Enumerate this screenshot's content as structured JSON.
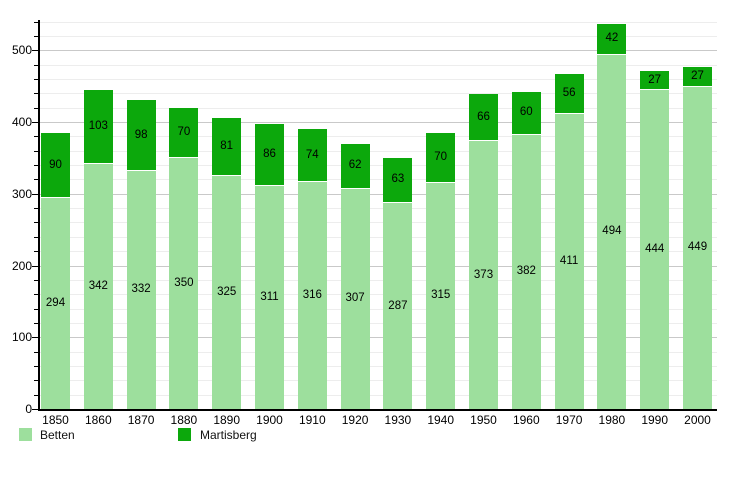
{
  "chart_data": {
    "type": "bar",
    "stacked": true,
    "title": "",
    "xlabel": "",
    "ylabel": "",
    "categories": [
      "1850",
      "1860",
      "1870",
      "1880",
      "1890",
      "1900",
      "1910",
      "1920",
      "1930",
      "1940",
      "1950",
      "1960",
      "1970",
      "1980",
      "1990",
      "2000"
    ],
    "series": [
      {
        "name": "Betten",
        "color": "#9ddf9d",
        "values": [
          294,
          342,
          332,
          350,
          325,
          311,
          316,
          307,
          287,
          315,
          373,
          382,
          411,
          494,
          444,
          449
        ]
      },
      {
        "name": "Martisberg",
        "color": "#0ca80c",
        "values": [
          90,
          103,
          98,
          70,
          81,
          86,
          74,
          62,
          63,
          70,
          66,
          60,
          56,
          42,
          27,
          27
        ]
      }
    ],
    "ylim": [
      0,
      545
    ],
    "yticks_labeled": [
      0,
      100,
      200,
      300,
      400,
      500
    ],
    "ytick_minor_step": 20,
    "grid": "horizontal",
    "grid_minor_color": "#ededed",
    "grid_major_color": "#c9c9c9",
    "axis_color": "#000000",
    "background_color": "#ffffff",
    "legend_position": "bottom",
    "legend": [
      "Betten",
      "Martisberg"
    ]
  }
}
